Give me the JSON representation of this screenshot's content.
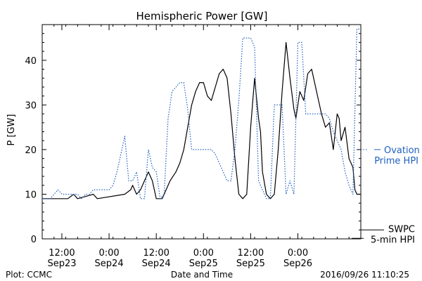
{
  "chart_data": {
    "type": "line",
    "title": "Hemispheric Power [GW]",
    "ylabel": "P [GW]",
    "xlabel": "Date and Time",
    "ylim": [
      0,
      48
    ],
    "xlim": [
      "2016-09-23 07:00",
      "2016-09-26 16:00"
    ],
    "yticks": [
      0,
      10,
      20,
      30,
      40
    ],
    "xticks": [
      {
        "time": "2016-09-23 12:00",
        "line1": "12:00",
        "line2": "Sep23"
      },
      {
        "time": "2016-09-24 00:00",
        "line1": "0:00",
        "line2": "Sep24"
      },
      {
        "time": "2016-09-24 12:00",
        "line1": "12:00",
        "line2": "Sep24"
      },
      {
        "time": "2016-09-25 00:00",
        "line1": "0:00",
        "line2": "Sep25"
      },
      {
        "time": "2016-09-25 12:00",
        "line1": "12:00",
        "line2": "Sep25"
      },
      {
        "time": "2016-09-26 00:00",
        "line1": "0:00",
        "line2": "Sep26"
      }
    ],
    "grid": false,
    "series": [
      {
        "name": "SWPC 5-min HPI",
        "legend_line1": "SWPC",
        "legend_line2": "5-min HPI",
        "color": "#000000",
        "style": "solid",
        "x": [
          "2016-09-23 07:00",
          "2016-09-23 13:00",
          "2016-09-23 13:30",
          "2016-09-23 15:00",
          "2016-09-23 16:00",
          "2016-09-23 20:00",
          "2016-09-23 21:00",
          "2016-09-24 04:00",
          "2016-09-24 05:30",
          "2016-09-24 06:00",
          "2016-09-24 07:00",
          "2016-09-24 08:00",
          "2016-09-24 09:00",
          "2016-09-24 10:00",
          "2016-09-24 11:00",
          "2016-09-24 12:00",
          "2016-09-24 13:30",
          "2016-09-24 14:30",
          "2016-09-24 15:30",
          "2016-09-24 17:00",
          "2016-09-24 18:00",
          "2016-09-24 19:00",
          "2016-09-24 20:00",
          "2016-09-24 21:00",
          "2016-09-24 22:00",
          "2016-09-24 23:00",
          "2016-09-25 00:00",
          "2016-09-25 01:00",
          "2016-09-25 02:00",
          "2016-09-25 03:00",
          "2016-09-25 04:00",
          "2016-09-25 05:00",
          "2016-09-25 06:00",
          "2016-09-25 07:00",
          "2016-09-25 08:00",
          "2016-09-25 09:00",
          "2016-09-25 10:00",
          "2016-09-25 11:00",
          "2016-09-25 12:00",
          "2016-09-25 13:00",
          "2016-09-25 14:00",
          "2016-09-25 14:30",
          "2016-09-25 15:00",
          "2016-09-25 16:00",
          "2016-09-25 17:00",
          "2016-09-25 18:00",
          "2016-09-25 19:00",
          "2016-09-25 20:00",
          "2016-09-25 21:00",
          "2016-09-25 22:00",
          "2016-09-25 23:00",
          "2016-09-25 23:30",
          "2016-09-26 00:30",
          "2016-09-26 01:30",
          "2016-09-26 02:30",
          "2016-09-26 03:30",
          "2016-09-26 05:00",
          "2016-09-26 06:00",
          "2016-09-26 07:00",
          "2016-09-26 08:00",
          "2016-09-26 09:00",
          "2016-09-26 10:00",
          "2016-09-26 10:30",
          "2016-09-26 11:00",
          "2016-09-26 12:00",
          "2016-09-26 13:00",
          "2016-09-26 14:00",
          "2016-09-26 14:30",
          "2016-09-26 15:00",
          "2016-09-26 16:00"
        ],
        "y": [
          9,
          9,
          9,
          10,
          9,
          10,
          9,
          10,
          11,
          12,
          10,
          11,
          13,
          15,
          13,
          9,
          9,
          11,
          13,
          15,
          17,
          20,
          25,
          30,
          33,
          35,
          35,
          32,
          31,
          34,
          37,
          38,
          36,
          28,
          18,
          10,
          9,
          10,
          25,
          36,
          27,
          24,
          15,
          10,
          9,
          10,
          20,
          33,
          44,
          36,
          29,
          27,
          33,
          31,
          37,
          38,
          32,
          28,
          25,
          26,
          20,
          28,
          27,
          22,
          25,
          18,
          16,
          11,
          10,
          10
        ]
      },
      {
        "name": "Ovation Prime HPI",
        "legend_line1": "Ovation",
        "legend_line2": "Prime HPI",
        "color": "#1f5fbf",
        "style": "dotted",
        "x": [
          "2016-09-23 07:00",
          "2016-09-23 09:00",
          "2016-09-23 10:00",
          "2016-09-23 11:00",
          "2016-09-23 12:00",
          "2016-09-23 13:00",
          "2016-09-23 14:00",
          "2016-09-23 15:00",
          "2016-09-23 16:00",
          "2016-09-23 17:00",
          "2016-09-23 18:00",
          "2016-09-23 19:00",
          "2016-09-23 20:00",
          "2016-09-23 21:00",
          "2016-09-23 22:00",
          "2016-09-23 23:00",
          "2016-09-24 00:00",
          "2016-09-24 01:00",
          "2016-09-24 02:00",
          "2016-09-24 03:00",
          "2016-09-24 04:00",
          "2016-09-24 05:00",
          "2016-09-24 06:00",
          "2016-09-24 07:00",
          "2016-09-24 08:00",
          "2016-09-24 09:00",
          "2016-09-24 10:00",
          "2016-09-24 11:00",
          "2016-09-24 12:00",
          "2016-09-24 13:00",
          "2016-09-24 14:00",
          "2016-09-24 15:00",
          "2016-09-24 16:00",
          "2016-09-24 17:00",
          "2016-09-24 18:00",
          "2016-09-24 19:00",
          "2016-09-24 20:00",
          "2016-09-24 21:00",
          "2016-09-24 22:00",
          "2016-09-24 23:00",
          "2016-09-25 00:00",
          "2016-09-25 01:00",
          "2016-09-25 02:00",
          "2016-09-25 03:00",
          "2016-09-25 04:00",
          "2016-09-25 05:00",
          "2016-09-25 06:00",
          "2016-09-25 07:00",
          "2016-09-25 08:00",
          "2016-09-25 09:00",
          "2016-09-25 10:00",
          "2016-09-25 11:00",
          "2016-09-25 12:00",
          "2016-09-25 13:00",
          "2016-09-25 14:00",
          "2016-09-25 15:00",
          "2016-09-25 16:00",
          "2016-09-25 17:00",
          "2016-09-25 18:00",
          "2016-09-25 19:00",
          "2016-09-25 20:00",
          "2016-09-25 21:00",
          "2016-09-25 22:00",
          "2016-09-25 23:00",
          "2016-09-26 00:00",
          "2016-09-26 01:00",
          "2016-09-26 02:00",
          "2016-09-26 03:00",
          "2016-09-26 04:00",
          "2016-09-26 05:00",
          "2016-09-26 06:00",
          "2016-09-26 07:00",
          "2016-09-26 08:00",
          "2016-09-26 09:00",
          "2016-09-26 10:00",
          "2016-09-26 11:00",
          "2016-09-26 12:00",
          "2016-09-26 13:00",
          "2016-09-26 14:00",
          "2016-09-26 15:00",
          "2016-09-26 16:00"
        ],
        "y": [
          9,
          9,
          10,
          11,
          10,
          10,
          10,
          10,
          10,
          9,
          10,
          10,
          11,
          11,
          11,
          11,
          11,
          12,
          15,
          19,
          23,
          13,
          13,
          15,
          9,
          9,
          20,
          16,
          15,
          9,
          10,
          27,
          33,
          34,
          35,
          35,
          29,
          20,
          20,
          20,
          20,
          20,
          20,
          19,
          17,
          15,
          13,
          13,
          20,
          31,
          45,
          45,
          45,
          43,
          13,
          11,
          9,
          9,
          30,
          30,
          30,
          10,
          13,
          10,
          44,
          44,
          28,
          28,
          28,
          28,
          28,
          28,
          27,
          24,
          22,
          20,
          15,
          12,
          10,
          47,
          47
        ]
      }
    ]
  },
  "footer": {
    "left": "Plot: CCMC",
    "right": "2016/09/26 11:10:25"
  }
}
